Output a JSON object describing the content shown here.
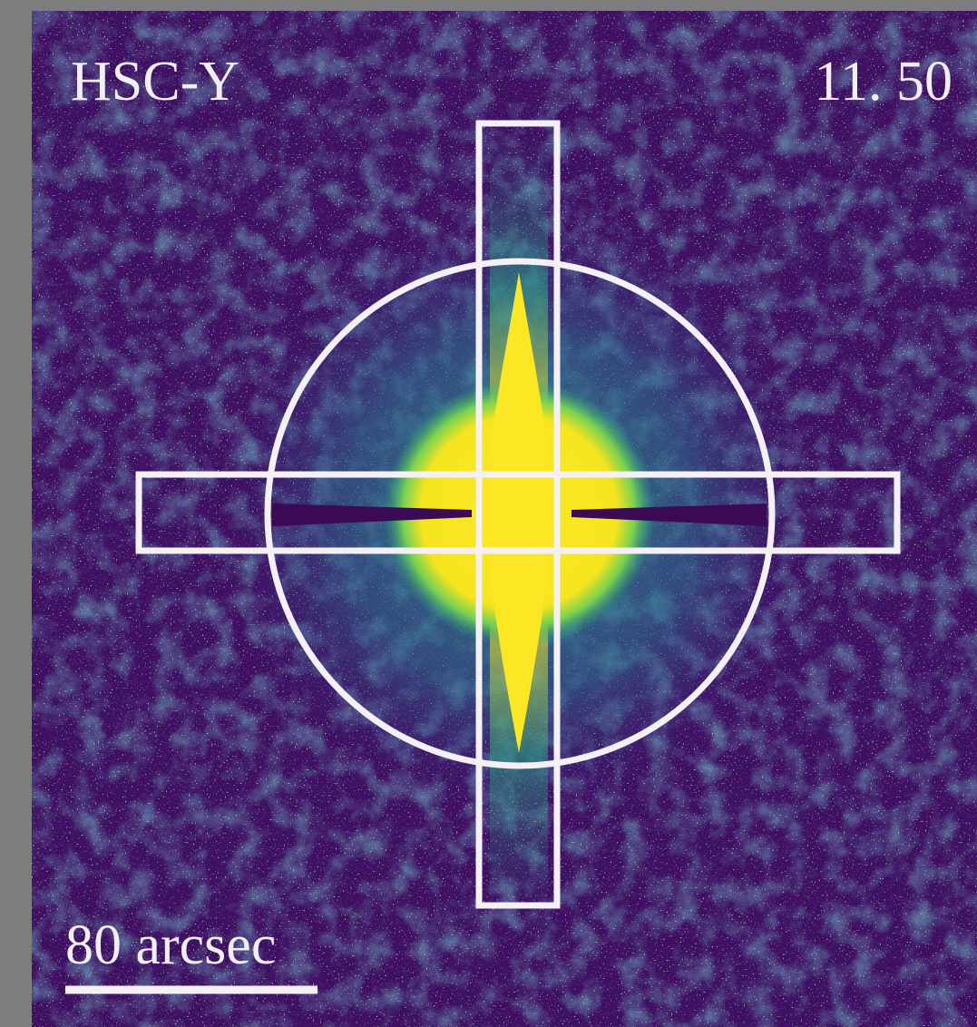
{
  "image": {
    "band": "HSC-Y",
    "magnitude": "11. 50",
    "scale_bar": "80 arcsec"
  }
}
